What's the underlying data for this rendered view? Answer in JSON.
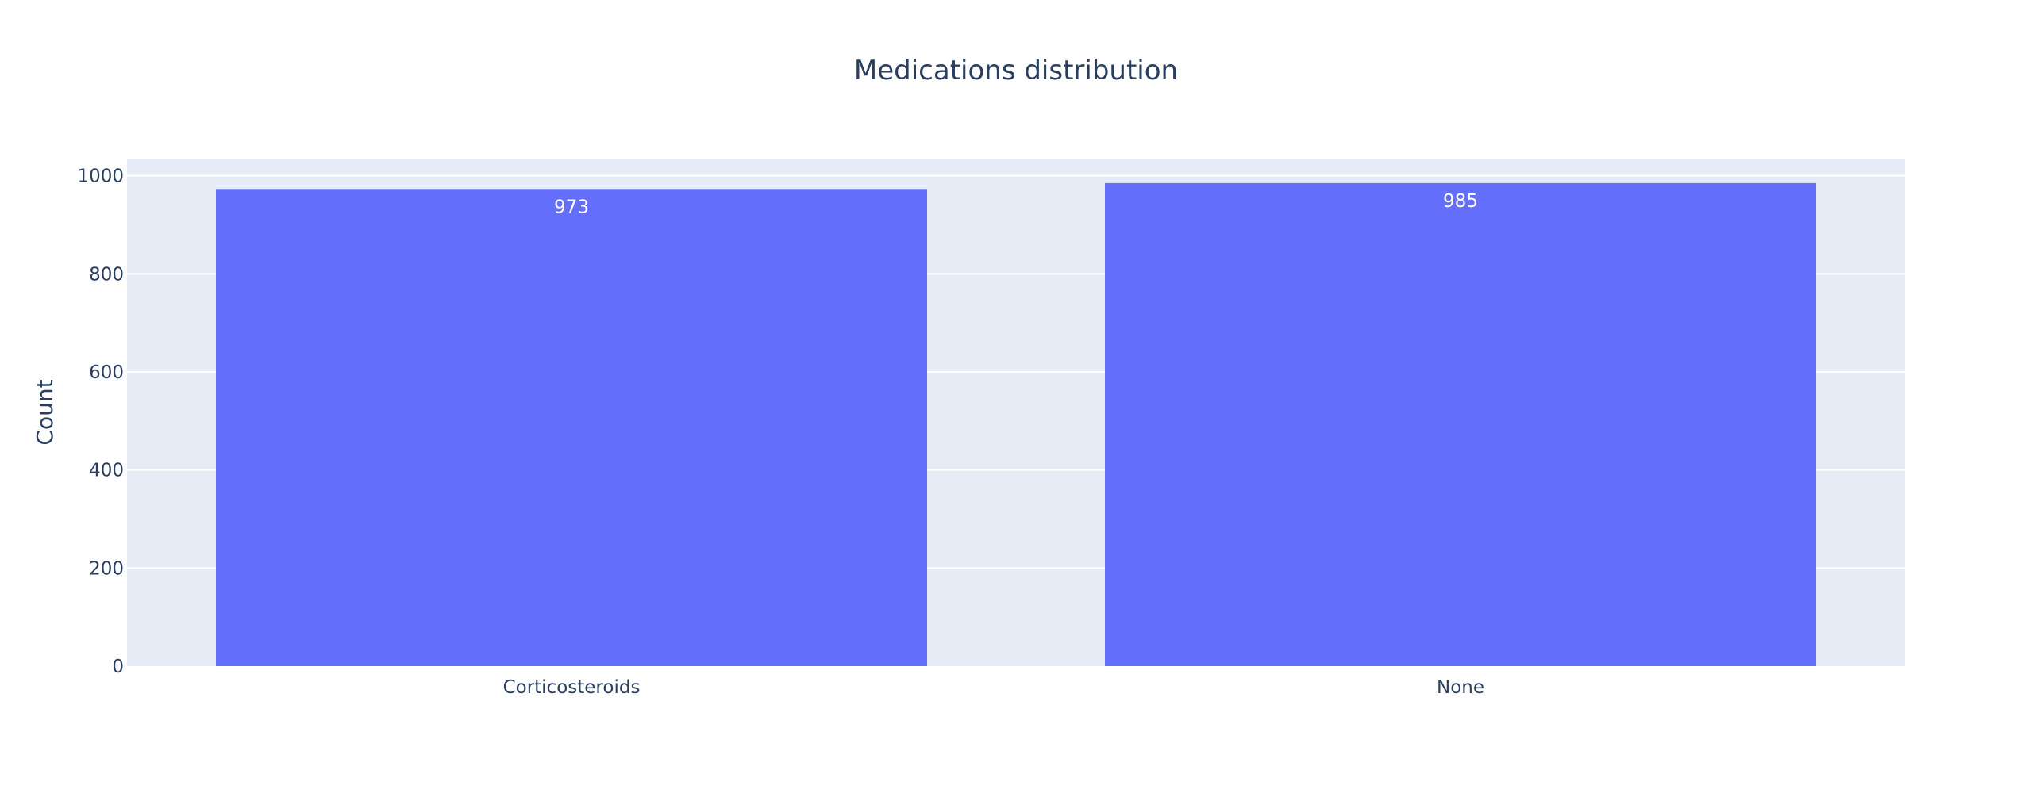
{
  "chart_data": {
    "type": "bar",
    "title": "Medications distribution",
    "xlabel": "",
    "ylabel": "Count",
    "categories": [
      "Corticosteroids",
      "None"
    ],
    "values": [
      973,
      985
    ],
    "data_labels": [
      "973",
      "985"
    ],
    "ylim": [
      0,
      1035
    ],
    "yticks": [
      0,
      200,
      400,
      600,
      800,
      1000
    ],
    "grid": true,
    "legend": "none",
    "colors": {
      "bar": "#636efa",
      "plot_background": "#e5ecf6",
      "grid": "#ffffff",
      "text": "#2a3f5f",
      "data_label": "#ffffff"
    }
  }
}
